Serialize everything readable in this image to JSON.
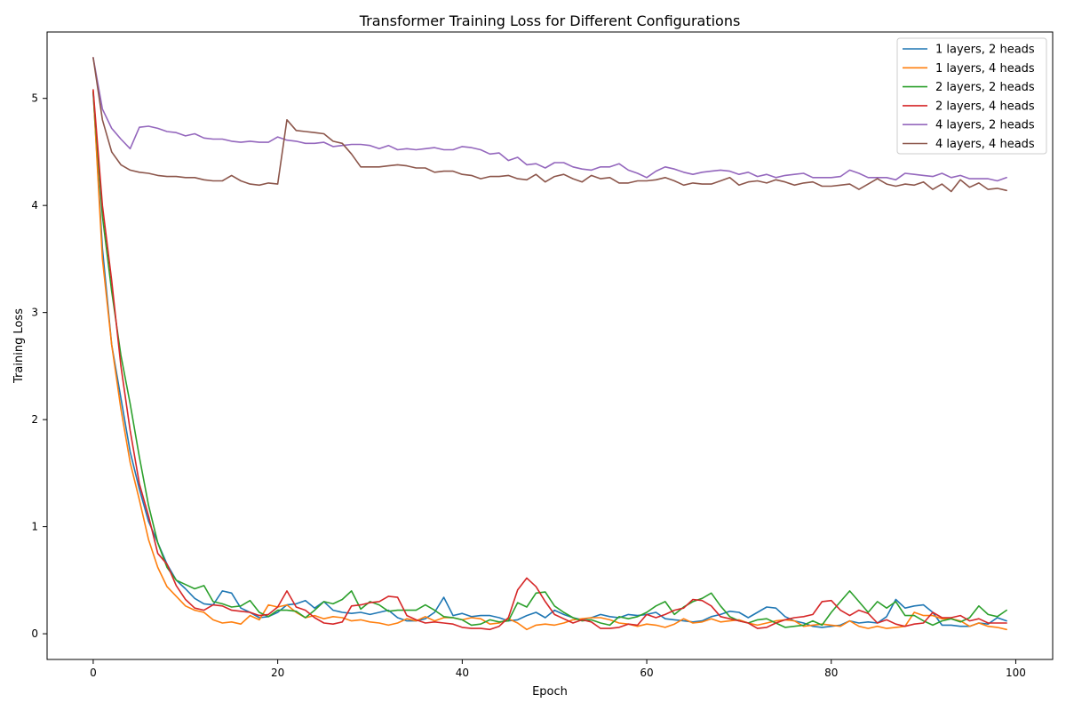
{
  "chart_data": {
    "type": "line",
    "title": "Transformer Training Loss for Different Configurations",
    "xlabel": "Epoch",
    "ylabel": "Training Loss",
    "xlim": [
      -5,
      104
    ],
    "ylim": [
      -0.24,
      5.62
    ],
    "xticks": [
      0,
      20,
      40,
      60,
      80,
      100
    ],
    "yticks": [
      0,
      1,
      2,
      3,
      4,
      5
    ],
    "grid": false,
    "legend_position": "top-right",
    "x": [
      0,
      1,
      2,
      3,
      4,
      5,
      6,
      7,
      8,
      9,
      10,
      11,
      12,
      13,
      14,
      15,
      16,
      17,
      18,
      19,
      20,
      21,
      22,
      23,
      24,
      25,
      26,
      27,
      28,
      29,
      30,
      31,
      32,
      33,
      34,
      35,
      36,
      37,
      38,
      39,
      40,
      41,
      42,
      43,
      44,
      45,
      46,
      47,
      48,
      49,
      50,
      51,
      52,
      53,
      54,
      55,
      56,
      57,
      58,
      59,
      60,
      61,
      62,
      63,
      64,
      65,
      66,
      67,
      68,
      69,
      70,
      71,
      72,
      73,
      74,
      75,
      76,
      77,
      78,
      79,
      80,
      81,
      82,
      83,
      84,
      85,
      86,
      87,
      88,
      89,
      90,
      91,
      92,
      93,
      94,
      95,
      96,
      97,
      98,
      99
    ],
    "series": [
      {
        "name": "1 layers, 2 heads",
        "color": "#1f77b4",
        "values": [
          5.05,
          3.6,
          2.7,
          2.2,
          1.7,
          1.35,
          1.05,
          0.85,
          0.65,
          0.5,
          0.42,
          0.33,
          0.28,
          0.27,
          0.4,
          0.38,
          0.24,
          0.2,
          0.15,
          0.16,
          0.2,
          0.27,
          0.28,
          0.31,
          0.24,
          0.3,
          0.22,
          0.2,
          0.19,
          0.2,
          0.18,
          0.2,
          0.22,
          0.15,
          0.12,
          0.12,
          0.14,
          0.2,
          0.34,
          0.17,
          0.19,
          0.16,
          0.17,
          0.17,
          0.15,
          0.12,
          0.13,
          0.17,
          0.2,
          0.15,
          0.22,
          0.18,
          0.15,
          0.13,
          0.15,
          0.18,
          0.16,
          0.15,
          0.18,
          0.17,
          0.18,
          0.2,
          0.14,
          0.13,
          0.12,
          0.11,
          0.12,
          0.16,
          0.18,
          0.21,
          0.2,
          0.15,
          0.2,
          0.25,
          0.24,
          0.16,
          0.12,
          0.1,
          0.07,
          0.06,
          0.07,
          0.08,
          0.12,
          0.1,
          0.11,
          0.1,
          0.16,
          0.32,
          0.24,
          0.26,
          0.27,
          0.2,
          0.08,
          0.08,
          0.07,
          0.07,
          0.1,
          0.09,
          0.15,
          0.12
        ]
      },
      {
        "name": "1 layers, 4 heads",
        "color": "#ff7f0e",
        "values": [
          5.07,
          3.5,
          2.7,
          2.1,
          1.6,
          1.25,
          0.88,
          0.62,
          0.44,
          0.35,
          0.26,
          0.22,
          0.2,
          0.13,
          0.1,
          0.11,
          0.09,
          0.17,
          0.13,
          0.27,
          0.25,
          0.27,
          0.2,
          0.15,
          0.17,
          0.14,
          0.16,
          0.15,
          0.12,
          0.13,
          0.11,
          0.1,
          0.08,
          0.1,
          0.14,
          0.12,
          0.16,
          0.12,
          0.15,
          0.15,
          0.13,
          0.15,
          0.14,
          0.09,
          0.1,
          0.14,
          0.1,
          0.04,
          0.08,
          0.09,
          0.08,
          0.1,
          0.13,
          0.14,
          0.15,
          0.15,
          0.13,
          0.1,
          0.09,
          0.07,
          0.09,
          0.08,
          0.06,
          0.09,
          0.14,
          0.1,
          0.11,
          0.14,
          0.11,
          0.12,
          0.13,
          0.1,
          0.08,
          0.1,
          0.12,
          0.13,
          0.12,
          0.07,
          0.08,
          0.09,
          0.08,
          0.07,
          0.12,
          0.07,
          0.05,
          0.07,
          0.05,
          0.06,
          0.07,
          0.2,
          0.17,
          0.17,
          0.14,
          0.14,
          0.12,
          0.07,
          0.1,
          0.07,
          0.06,
          0.04
        ]
      },
      {
        "name": "2 layers, 2 heads",
        "color": "#2ca02c",
        "values": [
          5.06,
          3.9,
          3.2,
          2.6,
          2.15,
          1.65,
          1.2,
          0.85,
          0.62,
          0.5,
          0.46,
          0.42,
          0.45,
          0.3,
          0.28,
          0.25,
          0.26,
          0.31,
          0.2,
          0.16,
          0.22,
          0.22,
          0.21,
          0.15,
          0.22,
          0.3,
          0.28,
          0.32,
          0.4,
          0.23,
          0.3,
          0.27,
          0.21,
          0.22,
          0.22,
          0.22,
          0.27,
          0.22,
          0.16,
          0.15,
          0.13,
          0.08,
          0.09,
          0.13,
          0.11,
          0.12,
          0.29,
          0.25,
          0.38,
          0.39,
          0.26,
          0.2,
          0.15,
          0.12,
          0.13,
          0.1,
          0.08,
          0.16,
          0.14,
          0.16,
          0.2,
          0.26,
          0.3,
          0.18,
          0.25,
          0.3,
          0.33,
          0.38,
          0.26,
          0.16,
          0.12,
          0.1,
          0.13,
          0.14,
          0.1,
          0.06,
          0.07,
          0.08,
          0.12,
          0.08,
          0.2,
          0.3,
          0.4,
          0.3,
          0.2,
          0.3,
          0.24,
          0.3,
          0.17,
          0.17,
          0.12,
          0.08,
          0.12,
          0.14,
          0.11,
          0.15,
          0.26,
          0.18,
          0.16,
          0.22
        ]
      },
      {
        "name": "2 layers, 4 heads",
        "color": "#d62728",
        "values": [
          5.08,
          4.0,
          3.3,
          2.5,
          1.9,
          1.4,
          1.1,
          0.75,
          0.65,
          0.45,
          0.32,
          0.24,
          0.22,
          0.27,
          0.26,
          0.22,
          0.21,
          0.2,
          0.17,
          0.18,
          0.25,
          0.4,
          0.25,
          0.22,
          0.15,
          0.1,
          0.09,
          0.11,
          0.26,
          0.27,
          0.29,
          0.3,
          0.35,
          0.34,
          0.17,
          0.13,
          0.1,
          0.11,
          0.1,
          0.09,
          0.06,
          0.05,
          0.05,
          0.04,
          0.07,
          0.15,
          0.41,
          0.52,
          0.44,
          0.3,
          0.18,
          0.14,
          0.1,
          0.13,
          0.11,
          0.05,
          0.05,
          0.06,
          0.09,
          0.08,
          0.18,
          0.15,
          0.18,
          0.22,
          0.24,
          0.32,
          0.31,
          0.26,
          0.16,
          0.14,
          0.12,
          0.1,
          0.05,
          0.06,
          0.1,
          0.13,
          0.15,
          0.16,
          0.18,
          0.3,
          0.31,
          0.22,
          0.17,
          0.22,
          0.19,
          0.1,
          0.13,
          0.09,
          0.07,
          0.09,
          0.1,
          0.2,
          0.15,
          0.15,
          0.17,
          0.12,
          0.14,
          0.1,
          0.1,
          0.1
        ]
      },
      {
        "name": "4 layers, 2 heads",
        "color": "#9467bd",
        "values": [
          5.38,
          4.9,
          4.72,
          4.62,
          4.53,
          4.73,
          4.74,
          4.72,
          4.69,
          4.68,
          4.65,
          4.67,
          4.63,
          4.62,
          4.62,
          4.6,
          4.59,
          4.6,
          4.59,
          4.59,
          4.64,
          4.61,
          4.6,
          4.58,
          4.58,
          4.59,
          4.55,
          4.56,
          4.57,
          4.57,
          4.56,
          4.53,
          4.56,
          4.52,
          4.53,
          4.52,
          4.53,
          4.54,
          4.52,
          4.52,
          4.55,
          4.54,
          4.52,
          4.48,
          4.49,
          4.42,
          4.45,
          4.38,
          4.39,
          4.35,
          4.4,
          4.4,
          4.36,
          4.34,
          4.33,
          4.36,
          4.36,
          4.39,
          4.33,
          4.3,
          4.26,
          4.32,
          4.36,
          4.34,
          4.31,
          4.29,
          4.31,
          4.32,
          4.33,
          4.32,
          4.29,
          4.31,
          4.27,
          4.29,
          4.26,
          4.28,
          4.29,
          4.3,
          4.26,
          4.26,
          4.26,
          4.27,
          4.33,
          4.3,
          4.26,
          4.26,
          4.26,
          4.24,
          4.3,
          4.29,
          4.28,
          4.27,
          4.3,
          4.26,
          4.28,
          4.25,
          4.25,
          4.25,
          4.23,
          4.26
        ]
      },
      {
        "name": "4 layers, 4 heads",
        "color": "#8c564b",
        "values": [
          5.38,
          4.8,
          4.5,
          4.38,
          4.33,
          4.31,
          4.3,
          4.28,
          4.27,
          4.27,
          4.26,
          4.26,
          4.24,
          4.23,
          4.23,
          4.28,
          4.23,
          4.2,
          4.19,
          4.21,
          4.2,
          4.8,
          4.7,
          4.69,
          4.68,
          4.67,
          4.6,
          4.58,
          4.48,
          4.36,
          4.36,
          4.36,
          4.37,
          4.38,
          4.37,
          4.35,
          4.35,
          4.31,
          4.32,
          4.32,
          4.29,
          4.28,
          4.25,
          4.27,
          4.27,
          4.28,
          4.25,
          4.24,
          4.29,
          4.22,
          4.27,
          4.29,
          4.25,
          4.22,
          4.28,
          4.25,
          4.26,
          4.21,
          4.21,
          4.23,
          4.23,
          4.24,
          4.26,
          4.23,
          4.19,
          4.21,
          4.2,
          4.2,
          4.23,
          4.26,
          4.19,
          4.22,
          4.23,
          4.21,
          4.24,
          4.22,
          4.19,
          4.21,
          4.22,
          4.18,
          4.18,
          4.19,
          4.2,
          4.15,
          4.2,
          4.25,
          4.2,
          4.18,
          4.2,
          4.19,
          4.22,
          4.15,
          4.2,
          4.13,
          4.24,
          4.17,
          4.21,
          4.15,
          4.16,
          4.14
        ]
      }
    ]
  }
}
